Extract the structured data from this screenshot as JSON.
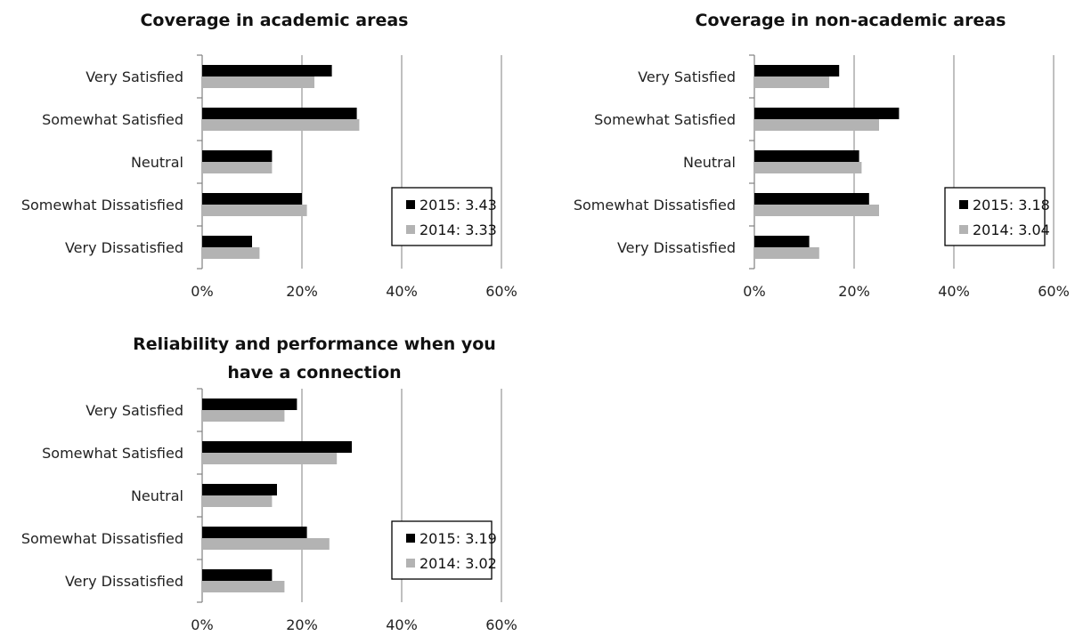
{
  "chart_data": [
    {
      "type": "bar",
      "title": [
        "Coverage in academic areas"
      ],
      "categories": [
        "Very Satisfied",
        "Somewhat Satisfied",
        "Neutral",
        "Somewhat Dissatisfied",
        "Very Dissatisfied"
      ],
      "series": [
        {
          "name": "2015: 3.43",
          "color": "#000000",
          "values": [
            26,
            31,
            14,
            20,
            10
          ]
        },
        {
          "name": "2014: 3.33",
          "color": "#b3b3b3",
          "values": [
            22.5,
            31.5,
            14,
            21,
            11.5
          ]
        }
      ],
      "xlim": [
        0,
        60
      ],
      "xticks": [
        "0%",
        "20%",
        "40%",
        "60%"
      ],
      "orientation": "horizontal",
      "grid": true,
      "legend_placement": "bottom-right"
    },
    {
      "type": "bar",
      "title": [
        "Coverage in non-academic areas"
      ],
      "categories": [
        "Very Satisfied",
        "Somewhat Satisfied",
        "Neutral",
        "Somewhat Dissatisfied",
        "Very Dissatisfied"
      ],
      "series": [
        {
          "name": "2015: 3.18",
          "color": "#000000",
          "values": [
            17,
            29,
            21,
            23,
            11
          ]
        },
        {
          "name": "2014: 3.04",
          "color": "#b3b3b3",
          "values": [
            15,
            25,
            21.5,
            25,
            13
          ]
        }
      ],
      "xlim": [
        0,
        60
      ],
      "xticks": [
        "0%",
        "20%",
        "40%",
        "60%"
      ],
      "orientation": "horizontal",
      "grid": true,
      "legend_placement": "bottom-right"
    },
    {
      "type": "bar",
      "title": [
        "Reliability and performance when you",
        "have a connection"
      ],
      "categories": [
        "Very Satisfied",
        "Somewhat Satisfied",
        "Neutral",
        "Somewhat Dissatisfied",
        "Very Dissatisfied"
      ],
      "series": [
        {
          "name": "2015: 3.19",
          "color": "#000000",
          "values": [
            19,
            30,
            15,
            21,
            14
          ]
        },
        {
          "name": "2014: 3.02",
          "color": "#b3b3b3",
          "values": [
            16.5,
            27,
            14,
            25.5,
            16.5
          ]
        }
      ],
      "xlim": [
        0,
        60
      ],
      "xticks": [
        "0%",
        "20%",
        "40%",
        "60%"
      ],
      "orientation": "horizontal",
      "grid": true,
      "legend_placement": "bottom-right"
    }
  ]
}
